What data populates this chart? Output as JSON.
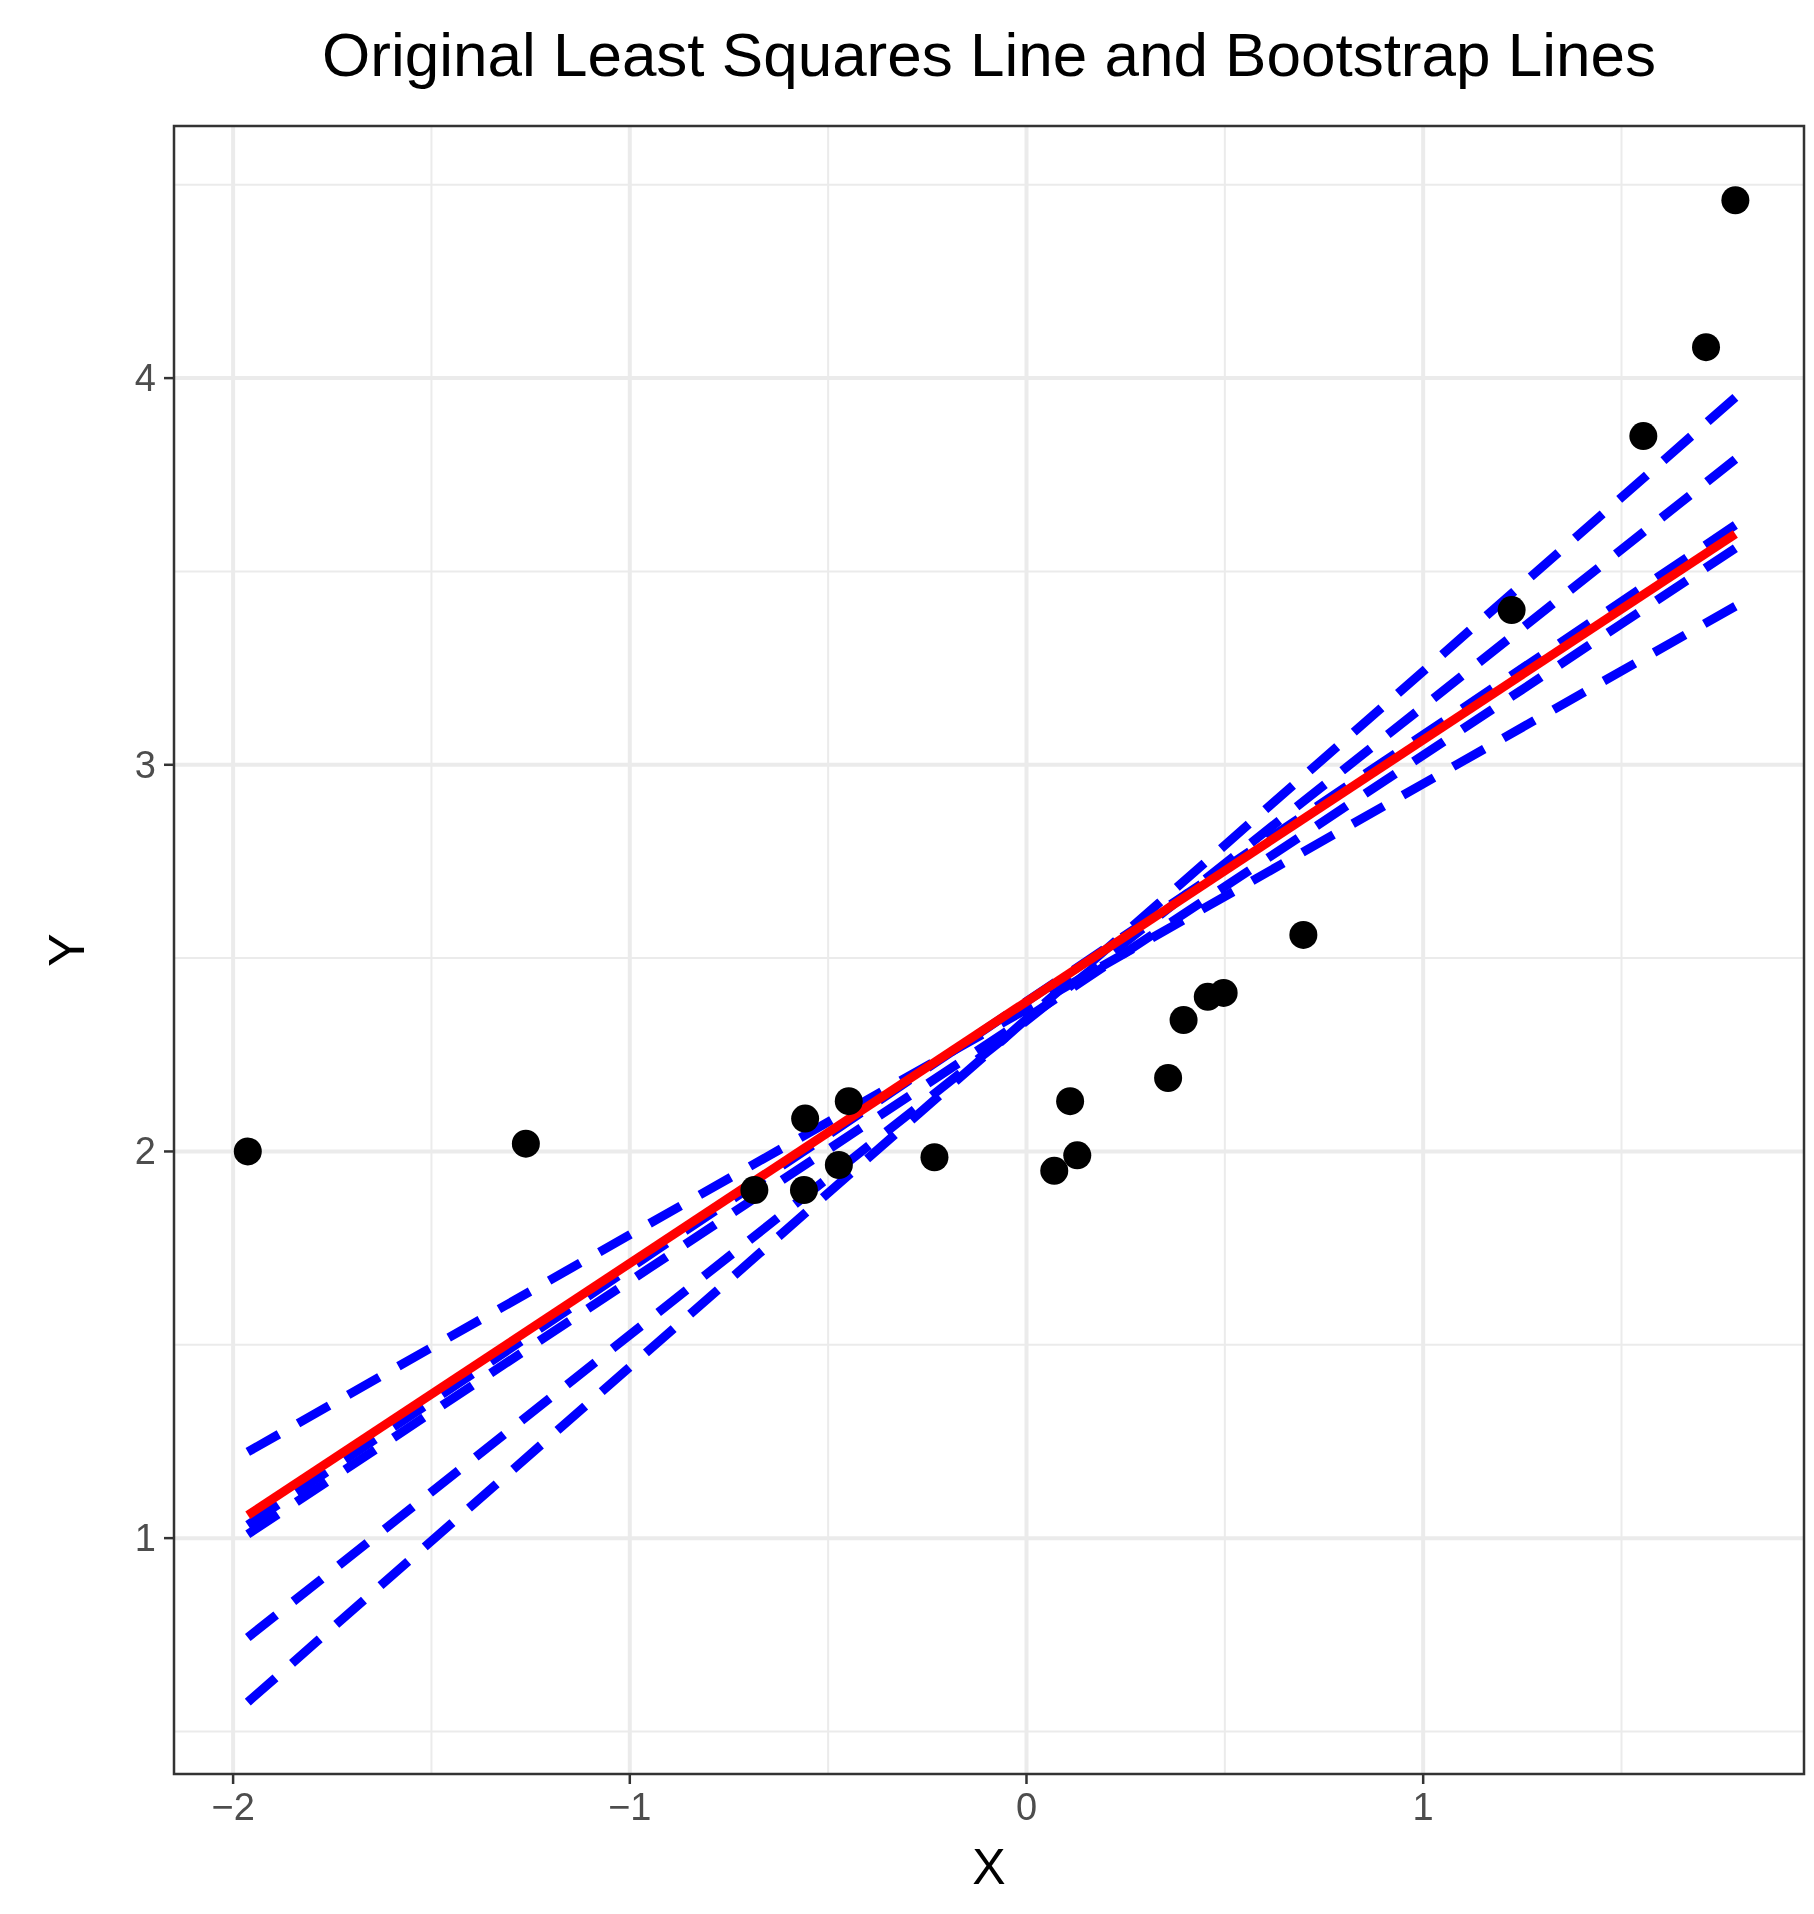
{
  "chart_data": {
    "type": "scatter",
    "title": "Original Least Squares Line and Bootstrap Lines",
    "xlabel": "X",
    "ylabel": "Y",
    "xlim": [
      -2.149,
      1.96
    ],
    "ylim": [
      0.39,
      4.652
    ],
    "xticks": [
      {
        "value": -2,
        "label": "−2"
      },
      {
        "value": -1,
        "label": "−1"
      },
      0,
      1
    ],
    "yticks": [
      1,
      2,
      3,
      4
    ],
    "grid": true,
    "series": [
      {
        "type": "line",
        "color": "#0000ff",
        "line_style": "dashed",
        "x": [
          -1.963,
          1.787
        ],
        "values": [
          1.223,
          3.41
        ]
      },
      {
        "type": "line",
        "color": "#0000ff",
        "line_style": "dashed",
        "x": [
          -1.963,
          1.787
        ],
        "values": [
          0.576,
          3.95
        ]
      },
      {
        "type": "line",
        "color": "#0000ff",
        "line_style": "dashed",
        "x": [
          -1.963,
          1.787
        ],
        "values": [
          0.743,
          3.79
        ]
      },
      {
        "type": "line",
        "color": "#0000ff",
        "line_style": "dashed",
        "x": [
          -1.963,
          1.787
        ],
        "values": [
          1.034,
          3.62
        ]
      },
      {
        "type": "line",
        "color": "#0000ff",
        "line_style": "dashed",
        "x": [
          -1.963,
          1.787
        ],
        "values": [
          1.01,
          3.56
        ]
      },
      {
        "type": "line",
        "color": "#ff0000",
        "line_style": "solid",
        "x": [
          -1.963,
          1.787
        ],
        "values": [
          1.059,
          3.597
        ]
      },
      {
        "color": "#000000",
        "marker": "circle",
        "x": [
          -1.963,
          -1.262,
          -0.686,
          -0.561,
          -0.558,
          -0.473,
          -0.448,
          -0.232,
          0.07,
          0.11,
          0.128,
          0.357,
          0.396,
          0.457,
          0.497,
          0.698,
          1.223,
          1.555,
          1.713,
          1.787
        ],
        "values": [
          2.0,
          2.02,
          1.9,
          1.9,
          2.085,
          1.965,
          2.13,
          1.985,
          1.95,
          2.13,
          1.99,
          2.19,
          2.34,
          2.4,
          2.41,
          2.56,
          3.4,
          3.85,
          4.08,
          4.46
        ]
      }
    ]
  }
}
